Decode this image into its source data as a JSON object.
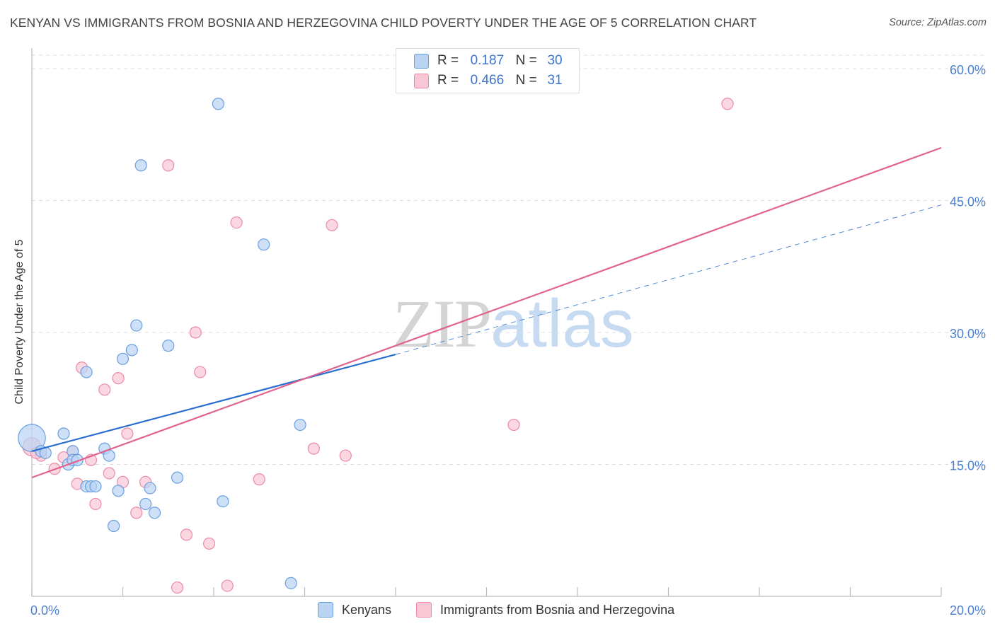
{
  "title": "KENYAN VS IMMIGRANTS FROM BOSNIA AND HERZEGOVINA CHILD POVERTY UNDER THE AGE OF 5 CORRELATION CHART",
  "source": "Source: ZipAtlas.com",
  "watermark": {
    "zip": "ZIP",
    "atlas": "atlas"
  },
  "legend_top": [
    {
      "r_label": "R =",
      "r_value": "0.187",
      "n_label": "N =",
      "n_value": "30"
    },
    {
      "r_label": "R =",
      "r_value": "0.466",
      "n_label": "N =",
      "n_value": "31"
    }
  ],
  "legend_bottom": [
    "Kenyans",
    "Immigrants from Bosnia and Herzegovina"
  ],
  "colors": {
    "kenyans_fill": "#b9d3f3",
    "kenyans_stroke": "#6a9fe0",
    "kenyans_line": "#2a6fcf",
    "bosnia_fill": "#f9c6d5",
    "bosnia_stroke": "#ec8aa8",
    "bosnia_line": "#e0628d",
    "tick_label": "#4a80d0",
    "grid": "#dddddd"
  },
  "chart_data": {
    "type": "scatter",
    "title": "KENYAN VS IMMIGRANTS FROM BOSNIA AND HERZEGOVINA CHILD POVERTY UNDER THE AGE OF 5 CORRELATION CHART",
    "xlabel": "",
    "ylabel": "Child Poverty Under the Age of 5",
    "xlim": [
      0,
      20
    ],
    "ylim": [
      0,
      60
    ],
    "x_tick_labels": [
      "0.0%",
      "20.0%"
    ],
    "y_ticks": [
      15,
      30,
      45,
      60
    ],
    "y_tick_labels": [
      "15.0%",
      "30.0%",
      "45.0%",
      "60.0%"
    ],
    "grid": true,
    "series": [
      {
        "name": "Kenyans",
        "points": [
          [
            0.0,
            18.0
          ],
          [
            0.2,
            16.5
          ],
          [
            0.7,
            18.5
          ],
          [
            0.8,
            15.0
          ],
          [
            0.9,
            16.5
          ],
          [
            0.9,
            15.5
          ],
          [
            1.0,
            15.5
          ],
          [
            1.2,
            12.5
          ],
          [
            1.3,
            12.5
          ],
          [
            1.4,
            12.5
          ],
          [
            1.6,
            16.8
          ],
          [
            1.7,
            16.0
          ],
          [
            1.8,
            8.0
          ],
          [
            1.9,
            12.0
          ],
          [
            2.0,
            27.0
          ],
          [
            2.2,
            28.0
          ],
          [
            2.3,
            30.8
          ],
          [
            2.5,
            10.5
          ],
          [
            2.6,
            12.3
          ],
          [
            2.7,
            9.5
          ],
          [
            3.0,
            28.5
          ],
          [
            3.2,
            13.5
          ],
          [
            4.1,
            56.0
          ],
          [
            4.2,
            10.8
          ],
          [
            5.1,
            40.0
          ],
          [
            5.7,
            1.5
          ],
          [
            5.9,
            19.5
          ],
          [
            2.4,
            49.0
          ],
          [
            1.2,
            25.5
          ],
          [
            0.3,
            16.3
          ]
        ],
        "point_size": [
          3,
          1,
          1,
          1,
          1,
          1,
          1,
          1,
          1,
          1,
          1,
          1,
          1,
          1,
          1,
          1,
          1,
          1,
          1,
          1,
          1,
          1,
          1,
          1,
          1,
          1,
          1,
          1,
          1,
          1
        ]
      },
      {
        "name": "Immigrants from Bosnia and Herzegovina",
        "points": [
          [
            0.0,
            17.0
          ],
          [
            0.2,
            16.0
          ],
          [
            0.5,
            14.5
          ],
          [
            0.7,
            15.8
          ],
          [
            0.9,
            16.5
          ],
          [
            1.0,
            12.8
          ],
          [
            1.1,
            26.0
          ],
          [
            1.3,
            15.5
          ],
          [
            1.4,
            10.5
          ],
          [
            1.6,
            23.5
          ],
          [
            1.7,
            14.0
          ],
          [
            1.9,
            24.8
          ],
          [
            2.0,
            13.0
          ],
          [
            2.1,
            18.5
          ],
          [
            2.3,
            9.5
          ],
          [
            2.5,
            13.0
          ],
          [
            3.0,
            49.0
          ],
          [
            3.2,
            1.0
          ],
          [
            3.4,
            7.0
          ],
          [
            3.6,
            30.0
          ],
          [
            3.7,
            25.5
          ],
          [
            3.9,
            6.0
          ],
          [
            4.3,
            1.2
          ],
          [
            4.5,
            42.5
          ],
          [
            5.0,
            13.3
          ],
          [
            6.2,
            16.8
          ],
          [
            6.6,
            42.2
          ],
          [
            6.9,
            16.0
          ],
          [
            10.6,
            19.5
          ],
          [
            15.3,
            56.0
          ],
          [
            0.1,
            16.3
          ]
        ],
        "point_size": [
          2,
          1,
          1,
          1,
          1,
          1,
          1,
          1,
          1,
          1,
          1,
          1,
          1,
          1,
          1,
          1,
          1,
          1,
          1,
          1,
          1,
          1,
          1,
          1,
          1,
          1,
          1,
          1,
          1,
          1,
          1
        ]
      }
    ],
    "trend_lines": [
      {
        "series": "Kenyans",
        "x0": 0,
        "y0": 16.5,
        "x1": 8.0,
        "y1": 27.5,
        "dashed_to_x": 20,
        "dashed_to_y": 44.5
      },
      {
        "series": "Immigrants from Bosnia and Herzegovina",
        "x0": 0,
        "y0": 13.5,
        "x1": 20,
        "y1": 51.0
      }
    ]
  }
}
